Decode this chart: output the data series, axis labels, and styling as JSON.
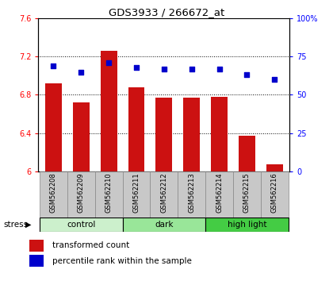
{
  "title": "GDS3933 / 266672_at",
  "samples": [
    "GSM562208",
    "GSM562209",
    "GSM562210",
    "GSM562211",
    "GSM562212",
    "GSM562213",
    "GSM562214",
    "GSM562215",
    "GSM562216"
  ],
  "red_values": [
    6.92,
    6.72,
    7.26,
    6.88,
    6.77,
    6.77,
    6.78,
    6.37,
    6.07
  ],
  "blue_values": [
    69,
    65,
    71,
    68,
    67,
    67,
    67,
    63,
    60
  ],
  "ylim_left": [
    6.0,
    7.6
  ],
  "ylim_right": [
    0,
    100
  ],
  "yticks_left": [
    6.0,
    6.4,
    6.8,
    7.2,
    7.6
  ],
  "yticks_right": [
    0,
    25,
    50,
    75,
    100
  ],
  "ytick_labels_left": [
    "6",
    "6.4",
    "6.8",
    "7.2",
    "7.6"
  ],
  "ytick_labels_right": [
    "0",
    "25",
    "50",
    "75",
    "100%"
  ],
  "groups": [
    {
      "label": "control",
      "indices": [
        0,
        1,
        2
      ],
      "color": "#ccf0cc"
    },
    {
      "label": "dark",
      "indices": [
        3,
        4,
        5
      ],
      "color": "#99e699"
    },
    {
      "label": "high light",
      "indices": [
        6,
        7,
        8
      ],
      "color": "#44cc44"
    }
  ],
  "bar_color": "#cc1111",
  "dot_color": "#0000cc",
  "bar_width": 0.6,
  "background_plot": "#ffffff",
  "sample_bg_color": "#c8c8c8",
  "stress_label": "stress",
  "legend_items": [
    "transformed count",
    "percentile rank within the sample"
  ]
}
